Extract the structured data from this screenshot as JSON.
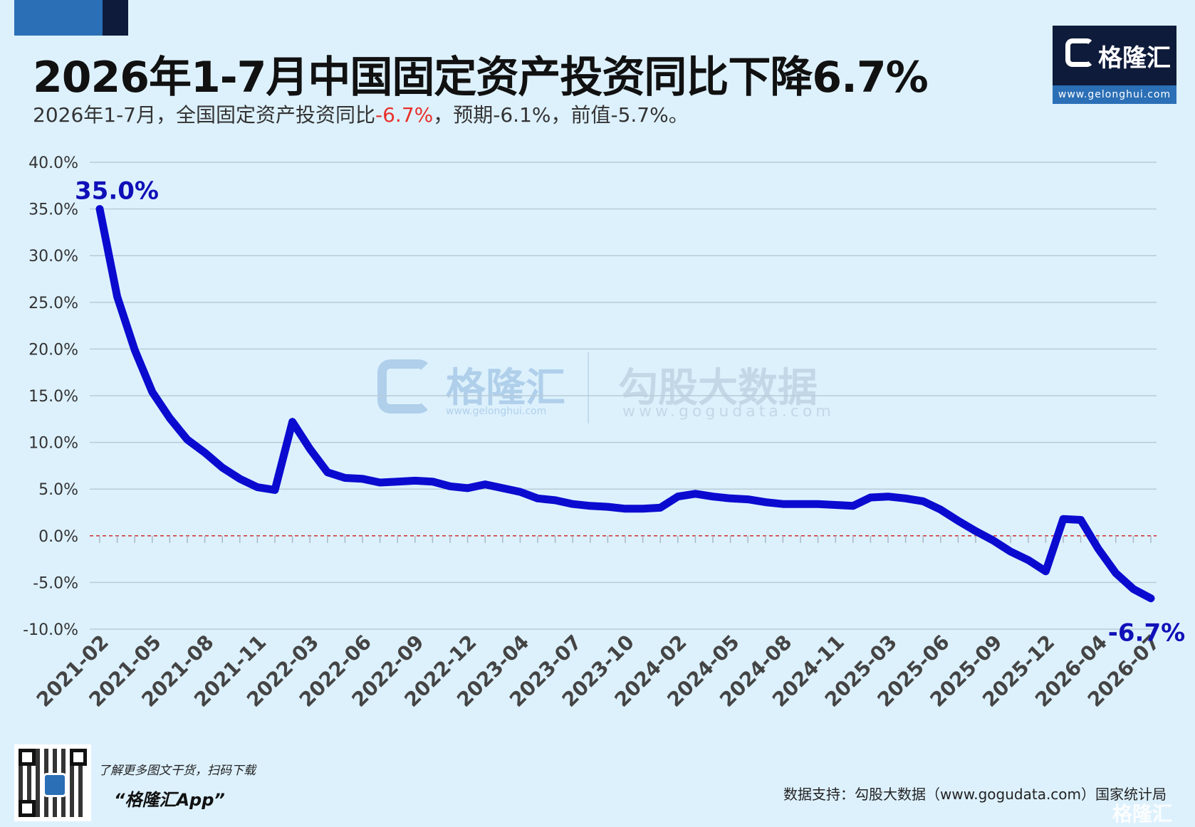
{
  "header": {
    "title": "2026年1-7月中国固定资产投资同比下降6.7%",
    "subtitle_prefix": "2026年1-7月，全国固定资产投资同比",
    "subtitle_highlight": "-6.7%",
    "subtitle_suffix": "，预期-6.1%，前值-5.7%。",
    "highlight_color": "#e8302a"
  },
  "logo": {
    "text": "格隆汇",
    "url": "www.gelonghui.com"
  },
  "watermark": {
    "logo_text": "格隆汇",
    "logo_url": "www.gelonghui.com",
    "partner_text": "勾股大数据",
    "partner_url": "www.gogudata.com"
  },
  "footer": {
    "promo_line": "了解更多图文干货，扫码下载",
    "promo_app": "“格隆汇App”",
    "source": "数据支持：勾股大数据（www.gogudata.com）国家统计局",
    "corner_mark": "格隆汇"
  },
  "colors": {
    "background": "#ddf1fd",
    "line": "#0b0bd0",
    "annotation": "#1010b8",
    "gridline": "#b8ccd8",
    "zero_line": "#d23a3a",
    "brand_dark": "#0e1b3a",
    "brand_blue": "#2b6fb6"
  },
  "chart_data": {
    "type": "line",
    "ylim": [
      -10,
      40
    ],
    "yticks": [
      40,
      35,
      30,
      25,
      20,
      15,
      10,
      5,
      0,
      -5,
      -10
    ],
    "ytick_labels": [
      "40.0%",
      "35.0%",
      "30.0%",
      "25.0%",
      "20.0%",
      "15.0%",
      "10.0%",
      "5.0%",
      "0.0%",
      "-5.0%",
      "-10.0%"
    ],
    "xtick_labels": [
      "2021-02",
      "2021-05",
      "2021-08",
      "2021-11",
      "2022-03",
      "2022-06",
      "2022-09",
      "2022-12",
      "2023-04",
      "2023-07",
      "2023-10",
      "2024-02",
      "2024-05",
      "2024-08",
      "2024-11",
      "2025-03",
      "2025-06",
      "2025-09",
      "2025-12",
      "2026-04",
      "2026-07"
    ],
    "grid": true,
    "zero_line": "dashed",
    "series": [
      {
        "x": [
          "2021-02",
          "2021-03",
          "2021-04",
          "2021-05",
          "2021-06",
          "2021-07",
          "2021-08",
          "2021-09",
          "2021-10",
          "2021-11",
          "2021-12",
          "2022-02",
          "2022-03",
          "2022-04",
          "2022-05",
          "2022-06",
          "2022-07",
          "2022-08",
          "2022-09",
          "2022-10",
          "2022-11",
          "2022-12",
          "2023-02",
          "2023-03",
          "2023-04",
          "2023-05",
          "2023-06",
          "2023-07",
          "2023-08",
          "2023-09",
          "2023-10",
          "2023-11",
          "2023-12",
          "2024-02",
          "2024-03",
          "2024-04",
          "2024-05",
          "2024-06",
          "2024-07",
          "2024-08",
          "2024-09",
          "2024-10",
          "2024-11",
          "2024-12",
          "2025-02",
          "2025-03",
          "2025-04",
          "2025-05",
          "2025-06",
          "2025-07",
          "2025-08",
          "2025-09",
          "2025-10",
          "2025-11",
          "2025-12",
          "2026-02",
          "2026-03",
          "2026-04",
          "2026-05",
          "2026-06",
          "2026-07"
        ],
        "values": [
          35.0,
          25.6,
          19.9,
          15.4,
          12.6,
          10.3,
          8.9,
          7.3,
          6.1,
          5.2,
          4.9,
          12.2,
          9.3,
          6.8,
          6.2,
          6.1,
          5.7,
          5.8,
          5.9,
          5.8,
          5.3,
          5.1,
          5.5,
          5.1,
          4.7,
          4.0,
          3.8,
          3.4,
          3.2,
          3.1,
          2.9,
          2.9,
          3.0,
          4.2,
          4.5,
          4.2,
          4.0,
          3.9,
          3.6,
          3.4,
          3.4,
          3.4,
          3.3,
          3.2,
          4.1,
          4.2,
          4.0,
          3.7,
          2.8,
          1.6,
          0.5,
          -0.5,
          -1.7,
          -2.6,
          -3.8,
          1.8,
          1.7,
          -1.4,
          -4.0,
          -5.7,
          -6.7
        ]
      }
    ],
    "annotations": [
      {
        "x": "2021-02",
        "text": "35.0%"
      },
      {
        "x": "2026-07",
        "text": "-6.7%"
      }
    ]
  }
}
